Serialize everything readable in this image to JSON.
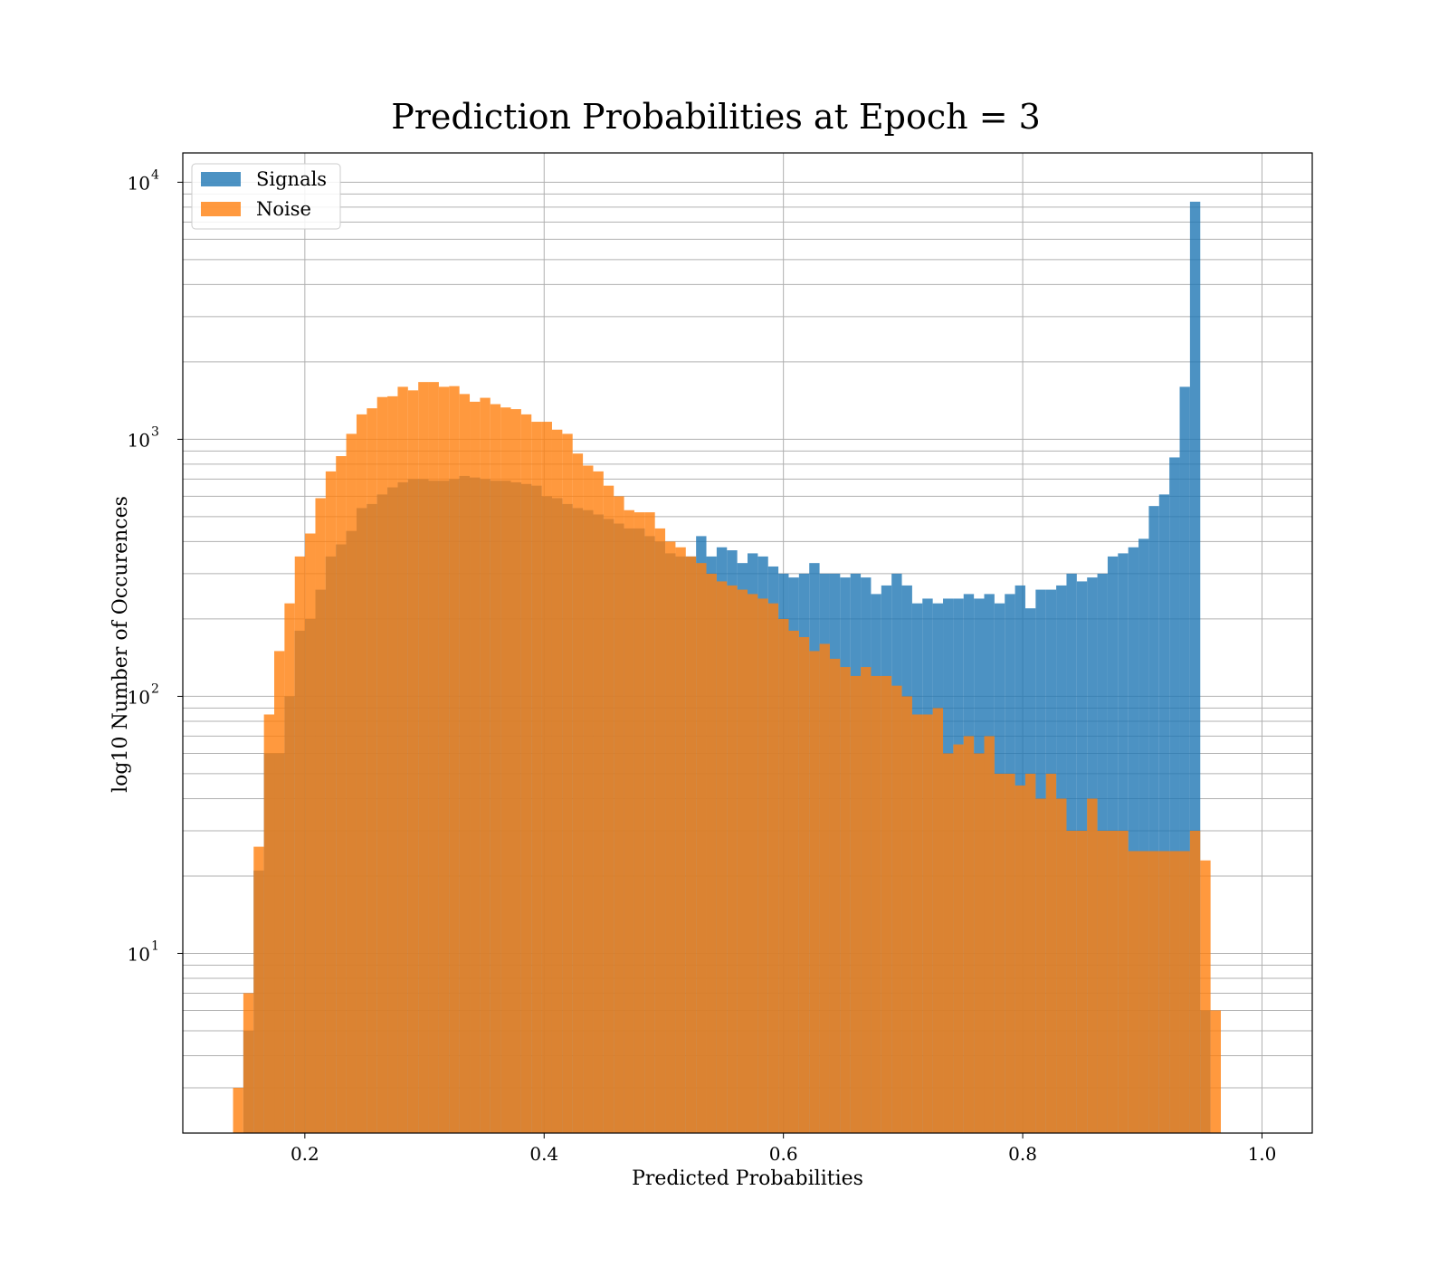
{
  "chart_data": {
    "type": "bar",
    "title": "Prediction Probabilities at Epoch = 3",
    "xlabel": "Predicted Probabilities",
    "ylabel": "log10 Number of Occurences",
    "xlim": [
      0.098,
      1.042
    ],
    "ylim": [
      2.0,
      13000
    ],
    "yscale": "log",
    "grid": true,
    "legend_position": "top-left",
    "x_ticks": [
      {
        "value": 0.2,
        "label": "0.2"
      },
      {
        "value": 0.4,
        "label": "0.4"
      },
      {
        "value": 0.6,
        "label": "0.6"
      },
      {
        "value": 0.8,
        "label": "0.8"
      },
      {
        "value": 1.0,
        "label": "1.0"
      }
    ],
    "y_ticks": [
      {
        "value": 10,
        "base": "10",
        "exp": "1"
      },
      {
        "value": 100,
        "base": "10",
        "exp": "2"
      },
      {
        "value": 1000,
        "base": "10",
        "exp": "3"
      },
      {
        "value": 10000,
        "base": "10",
        "exp": "4"
      }
    ],
    "bin_edges_start": 0.14,
    "bin_width": 0.0086,
    "series": [
      {
        "name": "Signals",
        "color": "#1f77b4",
        "opacity": 0.8,
        "start_bin": 1,
        "values": [
          5,
          21,
          60,
          60,
          100,
          180,
          200,
          260,
          350,
          390,
          440,
          540,
          560,
          610,
          650,
          680,
          700,
          700,
          690,
          690,
          700,
          720,
          710,
          700,
          690,
          690,
          680,
          670,
          660,
          600,
          590,
          560,
          540,
          530,
          510,
          490,
          470,
          450,
          450,
          420,
          400,
          360,
          350,
          350,
          420,
          350,
          380,
          370,
          330,
          360,
          350,
          320,
          300,
          290,
          300,
          330,
          300,
          300,
          290,
          300,
          290,
          250,
          270,
          300,
          270,
          230,
          240,
          230,
          240,
          240,
          250,
          240,
          250,
          230,
          250,
          270,
          220,
          260,
          260,
          270,
          300,
          280,
          290,
          300,
          350,
          360,
          380,
          410,
          550,
          610,
          850,
          1600,
          8400,
          6
        ]
      },
      {
        "name": "Noise",
        "color": "#ff7f0e",
        "opacity": 0.8,
        "start_bin": 0,
        "values": [
          3,
          7,
          26,
          85,
          150,
          230,
          350,
          430,
          590,
          750,
          860,
          1050,
          1250,
          1320,
          1460,
          1470,
          1600,
          1550,
          1670,
          1670,
          1600,
          1610,
          1500,
          1400,
          1450,
          1370,
          1330,
          1310,
          1250,
          1170,
          1170,
          1090,
          1050,
          880,
          790,
          750,
          660,
          600,
          530,
          520,
          520,
          450,
          400,
          380,
          350,
          330,
          300,
          280,
          270,
          260,
          250,
          240,
          230,
          200,
          180,
          170,
          150,
          160,
          140,
          130,
          120,
          130,
          120,
          120,
          110,
          100,
          85,
          85,
          90,
          60,
          65,
          70,
          60,
          70,
          50,
          50,
          45,
          50,
          40,
          50,
          40,
          30,
          30,
          40,
          30,
          30,
          30,
          25,
          25,
          25,
          25,
          25,
          25,
          30,
          23,
          6
        ]
      }
    ]
  }
}
